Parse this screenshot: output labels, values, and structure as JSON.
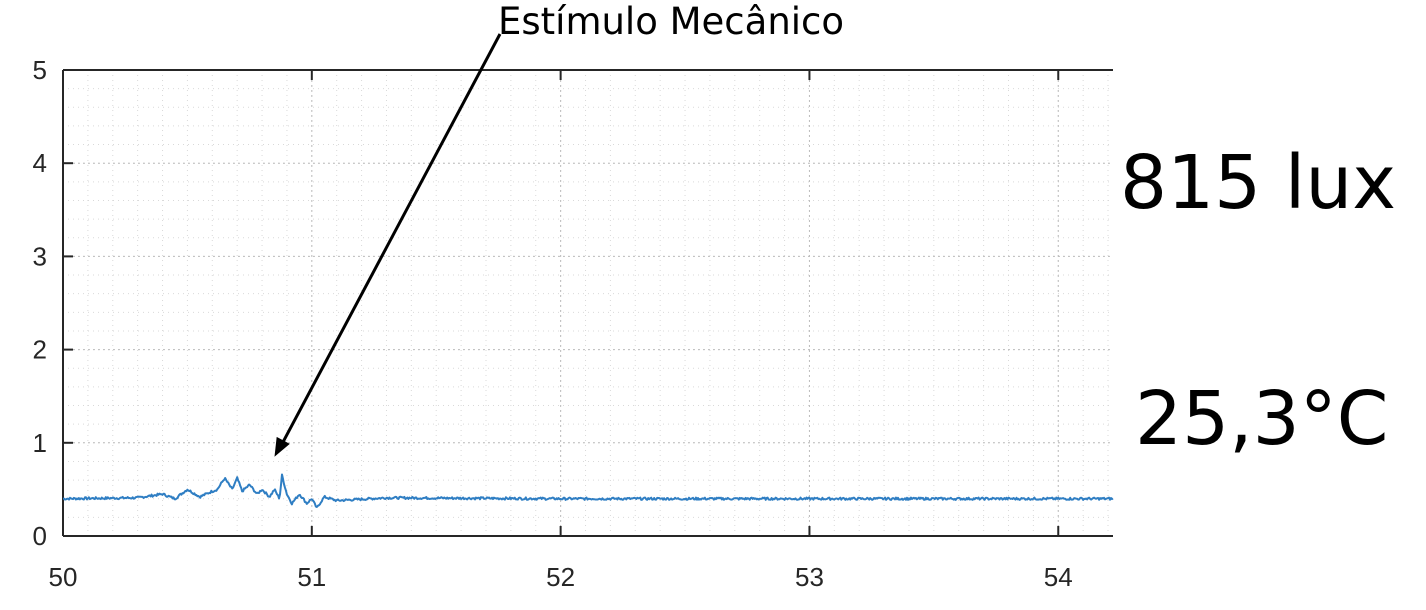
{
  "chart_data": {
    "type": "line",
    "title": "",
    "xlabel": "",
    "ylabel": "",
    "xlim": [
      50,
      54.22
    ],
    "ylim": [
      0,
      5
    ],
    "xticks": [
      "50",
      "51",
      "52",
      "53",
      "54"
    ],
    "yticks": [
      "0",
      "1",
      "2",
      "3",
      "4",
      "5"
    ],
    "grid": "on (dotted major and minor grid)",
    "series": [
      {
        "color": "#2f7ec3",
        "baseline": 0.4,
        "x": [
          50.0,
          50.3,
          50.4,
          50.45,
          50.5,
          50.55,
          50.6,
          50.62,
          50.65,
          50.68,
          50.7,
          50.72,
          50.75,
          50.78,
          50.8,
          50.83,
          50.85,
          50.87,
          50.88,
          50.9,
          50.92,
          50.95,
          50.98,
          51.0,
          51.02,
          51.05,
          51.1,
          51.3,
          52.0,
          53.0,
          54.22
        ],
        "y": [
          0.4,
          0.41,
          0.45,
          0.4,
          0.5,
          0.42,
          0.48,
          0.5,
          0.62,
          0.5,
          0.62,
          0.48,
          0.55,
          0.45,
          0.5,
          0.42,
          0.5,
          0.4,
          0.65,
          0.45,
          0.35,
          0.45,
          0.35,
          0.4,
          0.3,
          0.42,
          0.38,
          0.41,
          0.4,
          0.4,
          0.4
        ]
      }
    ],
    "annotations": [
      {
        "text": "Estímulo Mecânico",
        "points_to": {
          "x": 50.85,
          "y": 0.85
        }
      }
    ]
  },
  "readouts": {
    "illuminance": "815 lux",
    "temperature": "25,3°C"
  }
}
